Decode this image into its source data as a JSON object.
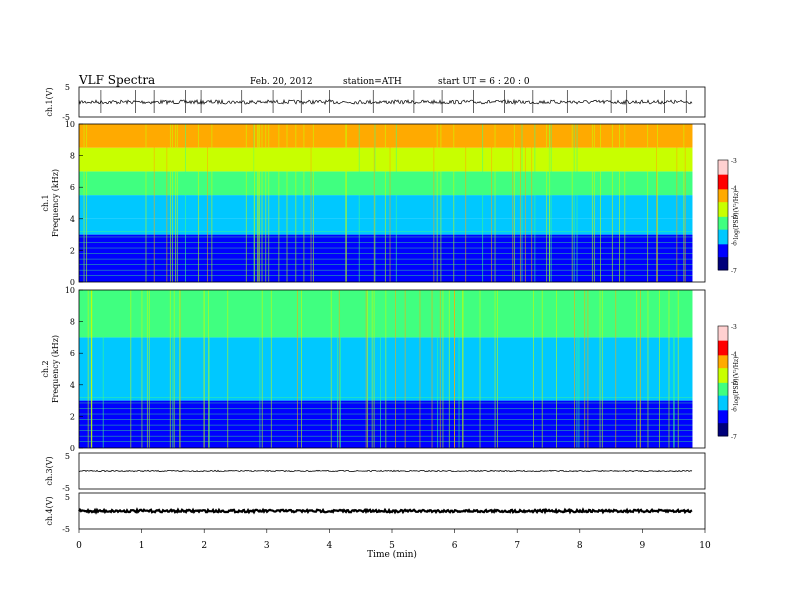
{
  "header": {
    "title": "VLF  Spectra",
    "date": "Feb. 20, 2012",
    "station": "station=ATH",
    "start": "start  UT  =   6  : 20 : 0"
  },
  "colors": {
    "colormap": [
      "#00007a",
      "#0000ff",
      "#00c8ff",
      "#40ff80",
      "#c8ff00",
      "#ffaa00",
      "#ff0000",
      "#ffd0d0"
    ],
    "trace": "#000000"
  },
  "chart_data": [
    {
      "type": "line",
      "name": "panel-ch1-waveform",
      "ylabel": "ch.1(V)",
      "ylim": [
        -5,
        5
      ],
      "yticks": [
        "5",
        "-5"
      ],
      "xlim": [
        0,
        10
      ],
      "baseline": 0,
      "spikes": [
        0.35,
        0.9,
        1.2,
        1.7,
        1.95,
        2.6,
        3.1,
        3.55,
        4.0,
        4.7,
        5.35,
        5.8,
        6.3,
        6.8,
        7.25,
        7.8,
        8.5,
        8.75,
        9.35,
        9.7
      ]
    },
    {
      "type": "heatmap",
      "name": "panel-ch1-spectrogram",
      "ylabel": "ch.1",
      "ylabel2": "Frequency  (kHz)",
      "yticks": [
        "0",
        "2",
        "4",
        "6",
        "8",
        "10"
      ],
      "ylim": [
        0,
        10
      ],
      "xlim": [
        0,
        9.8
      ],
      "colorbar_label": "log(PSD)(V²/Hz)",
      "colorbar_ticks": [
        "-3",
        "-4",
        "-5",
        "-6",
        "-7"
      ],
      "colorbar_range": [
        -7,
        -3
      ],
      "color_bands_khz": [
        {
          "from": 0,
          "to": 3,
          "level": -6.6
        },
        {
          "from": 3,
          "to": 4,
          "level": -6.0
        },
        {
          "from": 4,
          "to": 5.5,
          "level": -5.4
        },
        {
          "from": 5.5,
          "to": 7,
          "level": -4.8
        },
        {
          "from": 7,
          "to": 8.5,
          "level": -4.3
        },
        {
          "from": 8.5,
          "to": 10,
          "level": -3.8
        }
      ]
    },
    {
      "type": "heatmap",
      "name": "panel-ch2-spectrogram",
      "ylabel": "ch.2",
      "ylabel2": "Frequency  (kHz)",
      "yticks": [
        "0",
        "2",
        "4",
        "6",
        "8",
        "10"
      ],
      "ylim": [
        0,
        10
      ],
      "xlim": [
        0,
        9.8
      ],
      "colorbar_label": "log(PSD)(V²/Hz)",
      "colorbar_ticks": [
        "-3",
        "-4",
        "-5",
        "-6",
        "-7"
      ],
      "colorbar_range": [
        -7,
        -3
      ],
      "color_bands_khz": [
        {
          "from": 0,
          "to": 3,
          "level": -6.3
        },
        {
          "from": 3,
          "to": 5,
          "level": -6.0
        },
        {
          "from": 5,
          "to": 7,
          "level": -5.7
        },
        {
          "from": 7,
          "to": 10,
          "level": -5.2
        }
      ]
    },
    {
      "type": "line",
      "name": "panel-ch3-waveform",
      "ylabel": "ch.3(V)",
      "ylim": [
        -5,
        5
      ],
      "yticks": [
        "5",
        "-5"
      ],
      "xlim": [
        0,
        10
      ],
      "baseline": 0
    },
    {
      "type": "line",
      "name": "panel-ch4-waveform",
      "ylabel": "ch.4(V)",
      "ylim": [
        -5,
        5
      ],
      "yticks": [
        "5",
        "-5"
      ],
      "xlim": [
        0,
        10
      ],
      "baseline": 0,
      "xlabel": "Time  (min)",
      "xticks": [
        "0",
        "1",
        "2",
        "3",
        "4",
        "5",
        "6",
        "7",
        "8",
        "9",
        "10"
      ]
    }
  ]
}
